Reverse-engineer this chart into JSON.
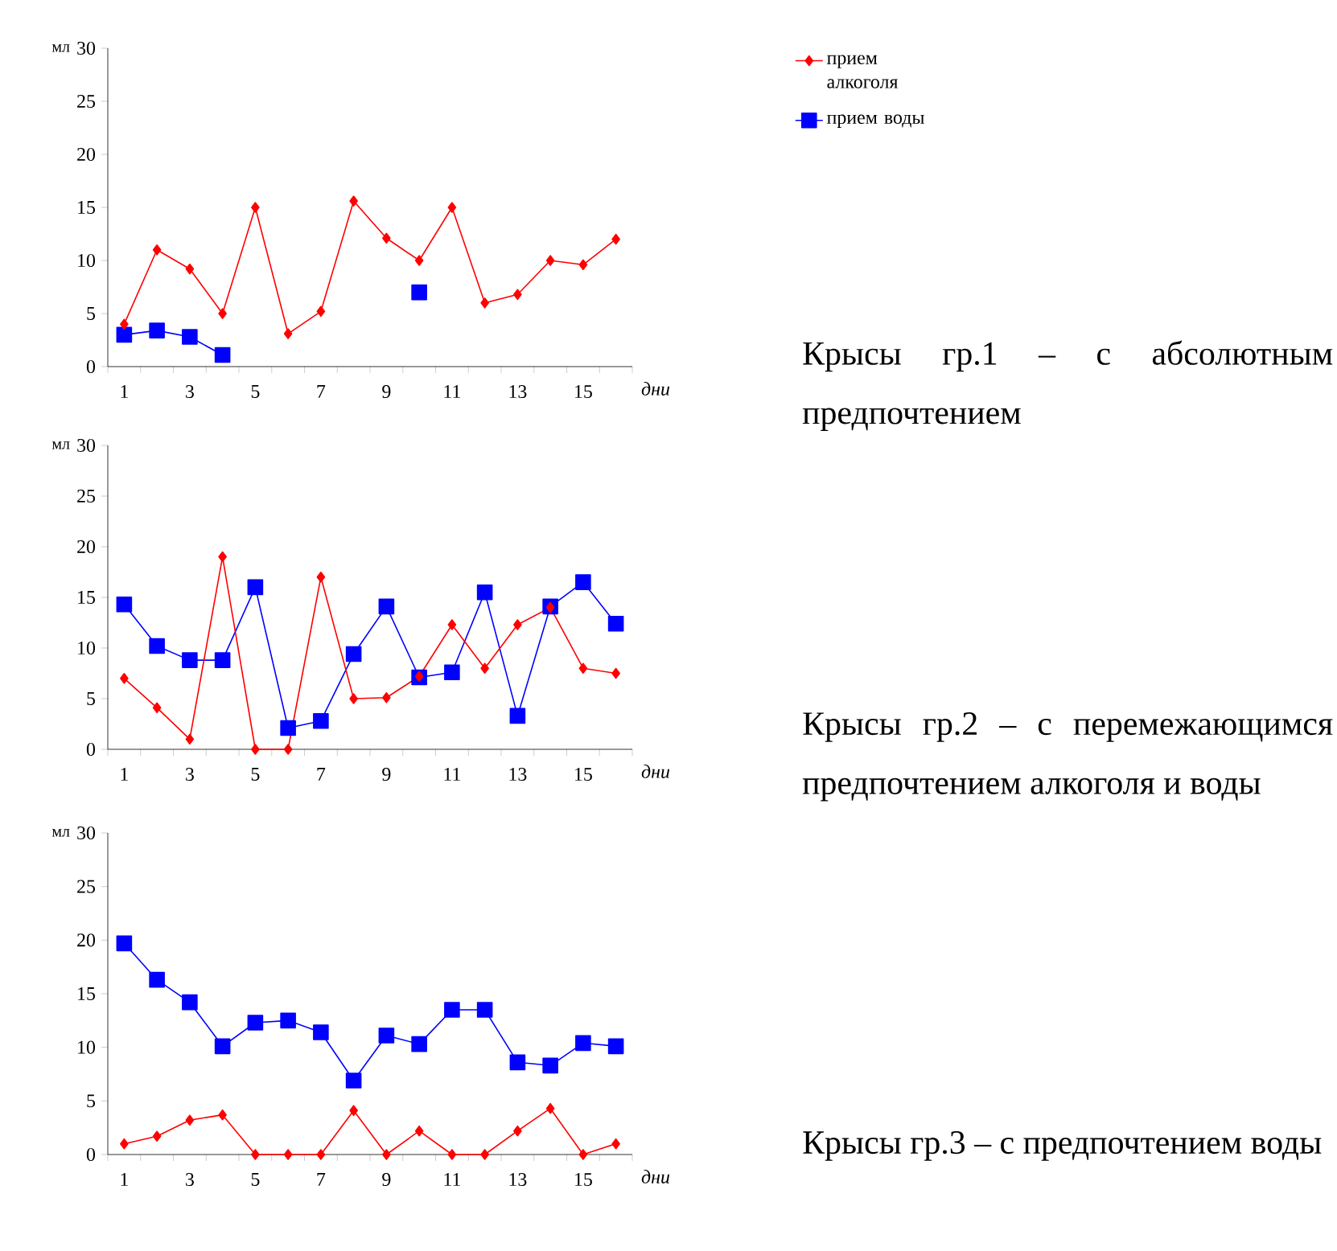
{
  "chart_data": [
    {
      "type": "line",
      "xlabel": "дни",
      "ylabel": "мл",
      "categories": [
        "1",
        null,
        "3",
        null,
        "5",
        null,
        "7",
        null,
        "9",
        null,
        "11",
        null,
        "13",
        null,
        "15",
        null
      ],
      "ylim": [
        0,
        30
      ],
      "yticks": [
        0,
        5,
        10,
        15,
        20,
        25,
        30
      ],
      "legend": "right",
      "annotations": [
        "Крысы гр.1 – с абсолютным предпочтением"
      ],
      "series": [
        {
          "name": "прием алкоголя",
          "color": "#ff0000",
          "marker": "diamond",
          "values": [
            4,
            11,
            9.2,
            5,
            15,
            3.1,
            5.2,
            15.6,
            12.1,
            10,
            15,
            6,
            6.8,
            10,
            9.6,
            12
          ]
        },
        {
          "name": "прием воды",
          "color": "#0000ff",
          "marker": "square",
          "values": [
            3,
            3.4,
            2.8,
            1.1,
            null,
            null,
            null,
            null,
            null,
            7,
            null,
            null,
            null,
            null,
            null,
            null
          ]
        }
      ]
    },
    {
      "type": "line",
      "xlabel": "дни",
      "ylabel": "мл",
      "categories": [
        "1",
        null,
        "3",
        null,
        "5",
        null,
        "7",
        null,
        "9",
        null,
        "11",
        null,
        "13",
        null,
        "15",
        null
      ],
      "ylim": [
        0,
        30
      ],
      "yticks": [
        0,
        5,
        10,
        15,
        20,
        25,
        30
      ],
      "annotations": [
        "Крысы гр.2 – с перемежающимся предпочтением алкоголя и воды"
      ],
      "series": [
        {
          "color": "#ff0000",
          "marker": "diamond",
          "values": [
            7,
            4.1,
            1,
            19,
            0,
            0,
            17,
            5,
            5.1,
            7.2,
            12.3,
            8,
            12.3,
            14,
            8,
            7.5
          ]
        },
        {
          "color": "#0000ff",
          "marker": "square",
          "values": [
            14.3,
            10.2,
            8.8,
            8.8,
            16,
            2.1,
            2.8,
            9.4,
            14.1,
            7.1,
            7.6,
            15.5,
            3.3,
            14.1,
            16.5,
            12.4
          ]
        }
      ]
    },
    {
      "type": "line",
      "xlabel": "дни",
      "ylabel": "мл",
      "categories": [
        "1",
        null,
        "3",
        null,
        "5",
        null,
        "7",
        null,
        "9",
        null,
        "11",
        null,
        "13",
        null,
        "15",
        null
      ],
      "ylim": [
        0,
        30
      ],
      "yticks": [
        0,
        5,
        10,
        15,
        20,
        25,
        30
      ],
      "annotations": [
        "Крысы гр.3 – с предпочтением воды"
      ],
      "series": [
        {
          "color": "#ff0000",
          "marker": "diamond",
          "values": [
            1,
            1.7,
            3.2,
            3.7,
            0,
            0,
            0,
            4.1,
            0,
            2.2,
            0,
            0,
            2.2,
            4.3,
            0,
            1
          ]
        },
        {
          "color": "#0000ff",
          "marker": "square",
          "values": [
            19.7,
            16.3,
            14.2,
            10.1,
            12.3,
            12.5,
            11.4,
            6.9,
            11.1,
            10.3,
            13.5,
            13.5,
            8.6,
            8.3,
            10.4,
            10.1
          ]
        }
      ]
    }
  ]
}
